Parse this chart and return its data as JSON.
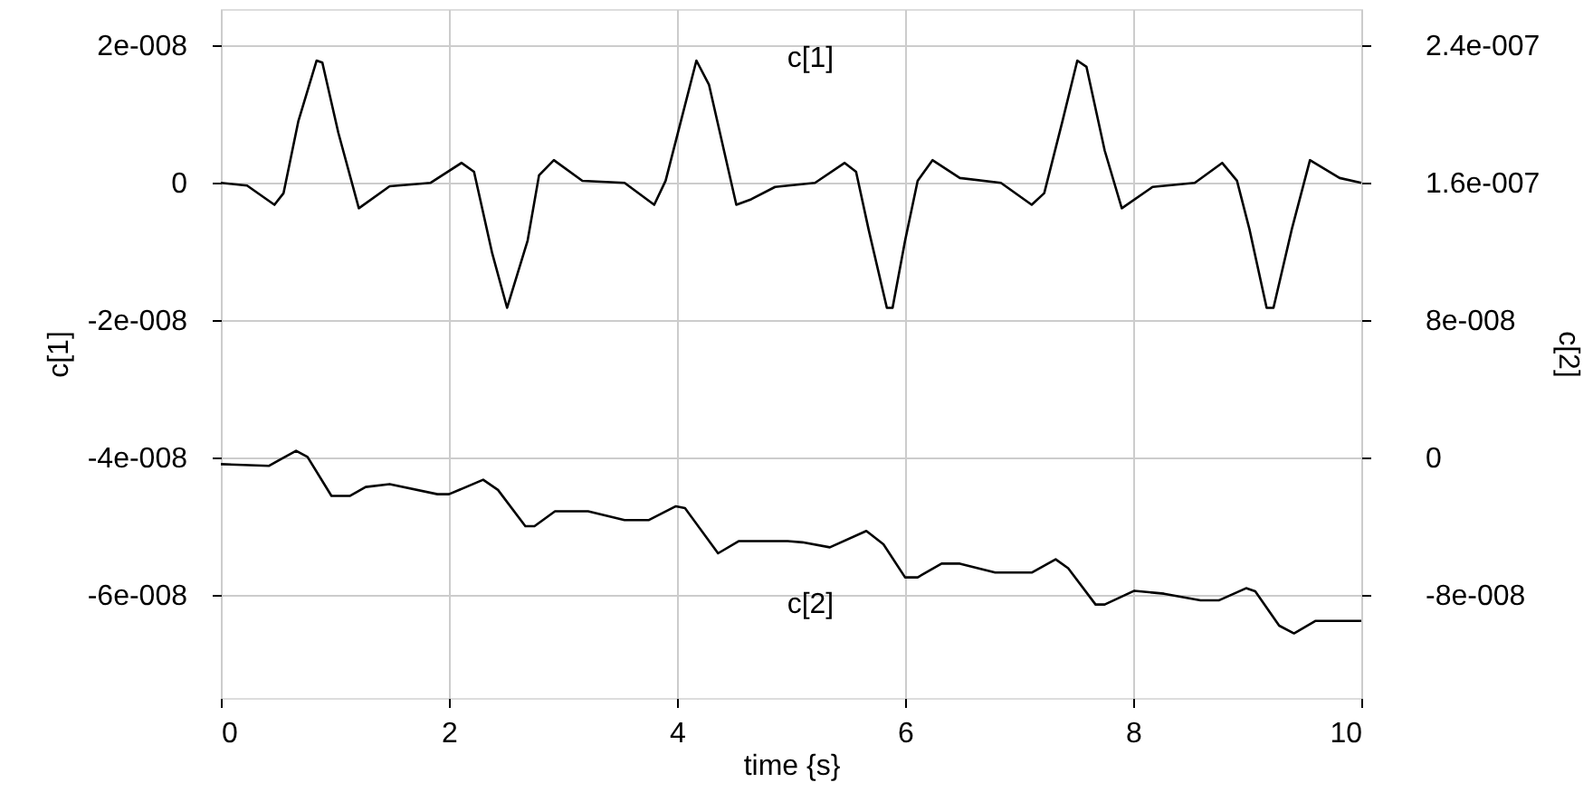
{
  "chart_data": {
    "type": "line",
    "xlabel": "time {s}",
    "ylabel": "c[1]",
    "y2label": "c[2]",
    "xlim": [
      0,
      10
    ],
    "xticks": [
      0,
      2,
      4,
      6,
      8,
      10
    ],
    "ylim": [
      -7.5e-08,
      2.53e-08
    ],
    "yticks": [
      {
        "value": 2e-08,
        "label": "2e-008"
      },
      {
        "value": 0,
        "label": "0"
      },
      {
        "value": -2e-08,
        "label": "-2e-008"
      },
      {
        "value": -4e-08,
        "label": "-4e-008"
      },
      {
        "value": -6e-08,
        "label": "-6e-008"
      }
    ],
    "y2lim": [
      -1.4e-07,
      2.61e-07
    ],
    "y2ticks": [
      {
        "value": 2.4e-07,
        "label": "2.4e-007"
      },
      {
        "value": 1.6e-07,
        "label": "1.6e-007"
      },
      {
        "value": 8e-08,
        "label": "8e-008"
      },
      {
        "value": 0,
        "label": "0"
      },
      {
        "value": -8e-08,
        "label": "-8e-008"
      }
    ],
    "grid": true,
    "line_style": "solid",
    "series": [
      {
        "name": "c[1]",
        "color": "#000000",
        "x": [
          0,
          0.23,
          0.47,
          0.55,
          0.68,
          0.84,
          0.89,
          1.03,
          1.21,
          1.48,
          1.84,
          2.11,
          2.22,
          2.38,
          2.51,
          2.69,
          2.79,
          2.92,
          3.17,
          3.54,
          3.8,
          3.9,
          4.17,
          4.28,
          4.52,
          4.65,
          4.86,
          5.21,
          5.47,
          5.57,
          5.68,
          5.84,
          5.89,
          6.0,
          6.11,
          6.24,
          6.48,
          6.84,
          7.11,
          7.22,
          7.38,
          7.51,
          7.59,
          7.75,
          7.9,
          8.17,
          8.54,
          8.78,
          8.91,
          9.02,
          9.17,
          9.23,
          9.39,
          9.55,
          9.81,
          10
        ],
        "values": [
          0,
          -4e-10,
          -3.2e-09,
          -1.5e-09,
          9e-09,
          1.78e-08,
          1.75e-08,
          7.3e-09,
          -3.7e-09,
          -5e-10,
          0,
          2.9e-09,
          1.6e-09,
          -1.03e-08,
          -1.82e-08,
          -8.4e-09,
          1.1e-09,
          3.3e-09,
          3e-10,
          0,
          -3.2e-09,
          3e-10,
          1.78e-08,
          1.43e-08,
          -3.2e-09,
          -2.4e-09,
          -6e-10,
          0,
          2.9e-09,
          1.6e-09,
          -6.8e-09,
          -1.82e-08,
          -1.82e-08,
          -8.4e-09,
          3e-10,
          3.3e-09,
          7e-10,
          0,
          -3.2e-09,
          -1.5e-09,
          9e-09,
          1.78e-08,
          1.69e-08,
          4.7e-09,
          -3.7e-09,
          -6e-10,
          0,
          2.9e-09,
          3e-10,
          -6.8e-09,
          -1.82e-08,
          -1.82e-08,
          -6.8e-09,
          3.3e-09,
          7e-10,
          0
        ]
      },
      {
        "name": "c[2]",
        "color": "#000000",
        "axis": "y2",
        "x": [
          0,
          0.42,
          0.66,
          0.76,
          0.97,
          1.13,
          1.27,
          1.48,
          1.9,
          2.0,
          2.3,
          2.43,
          2.67,
          2.75,
          2.93,
          3.22,
          3.54,
          3.75,
          3.99,
          4.07,
          4.36,
          4.54,
          4.97,
          5.1,
          5.34,
          5.66,
          5.81,
          6.0,
          6.11,
          6.32,
          6.48,
          6.79,
          7.11,
          7.32,
          7.43,
          7.67,
          7.75,
          8.01,
          8.27,
          8.59,
          8.75,
          8.99,
          9.07,
          9.28,
          9.41,
          9.6,
          10
        ],
        "values": [
          -3.9e-09,
          -4.9e-09,
          3.9e-09,
          3e-10,
          -2.24e-08,
          -2.24e-08,
          -1.72e-08,
          -1.55e-08,
          -2.14e-08,
          -2.14e-08,
          -1.3e-08,
          -1.89e-08,
          -4e-08,
          -4e-08,
          -3.13e-08,
          -3.13e-08,
          -3.65e-08,
          -3.65e-08,
          -2.84e-08,
          -2.95e-08,
          -5.58e-08,
          -4.87e-08,
          -4.87e-08,
          -4.94e-08,
          -5.23e-08,
          -4.28e-08,
          -5.05e-08,
          -6.98e-08,
          -6.98e-08,
          -6.18e-08,
          -6.18e-08,
          -6.7e-08,
          -6.7e-08,
          -5.93e-08,
          -6.45e-08,
          -8.56e-08,
          -8.56e-08,
          -7.76e-08,
          -7.93e-08,
          -8.32e-08,
          -8.32e-08,
          -7.61e-08,
          -7.79e-08,
          -9.79e-08,
          -1.024e-07,
          -9.51e-08,
          -9.51e-08
        ]
      }
    ]
  }
}
